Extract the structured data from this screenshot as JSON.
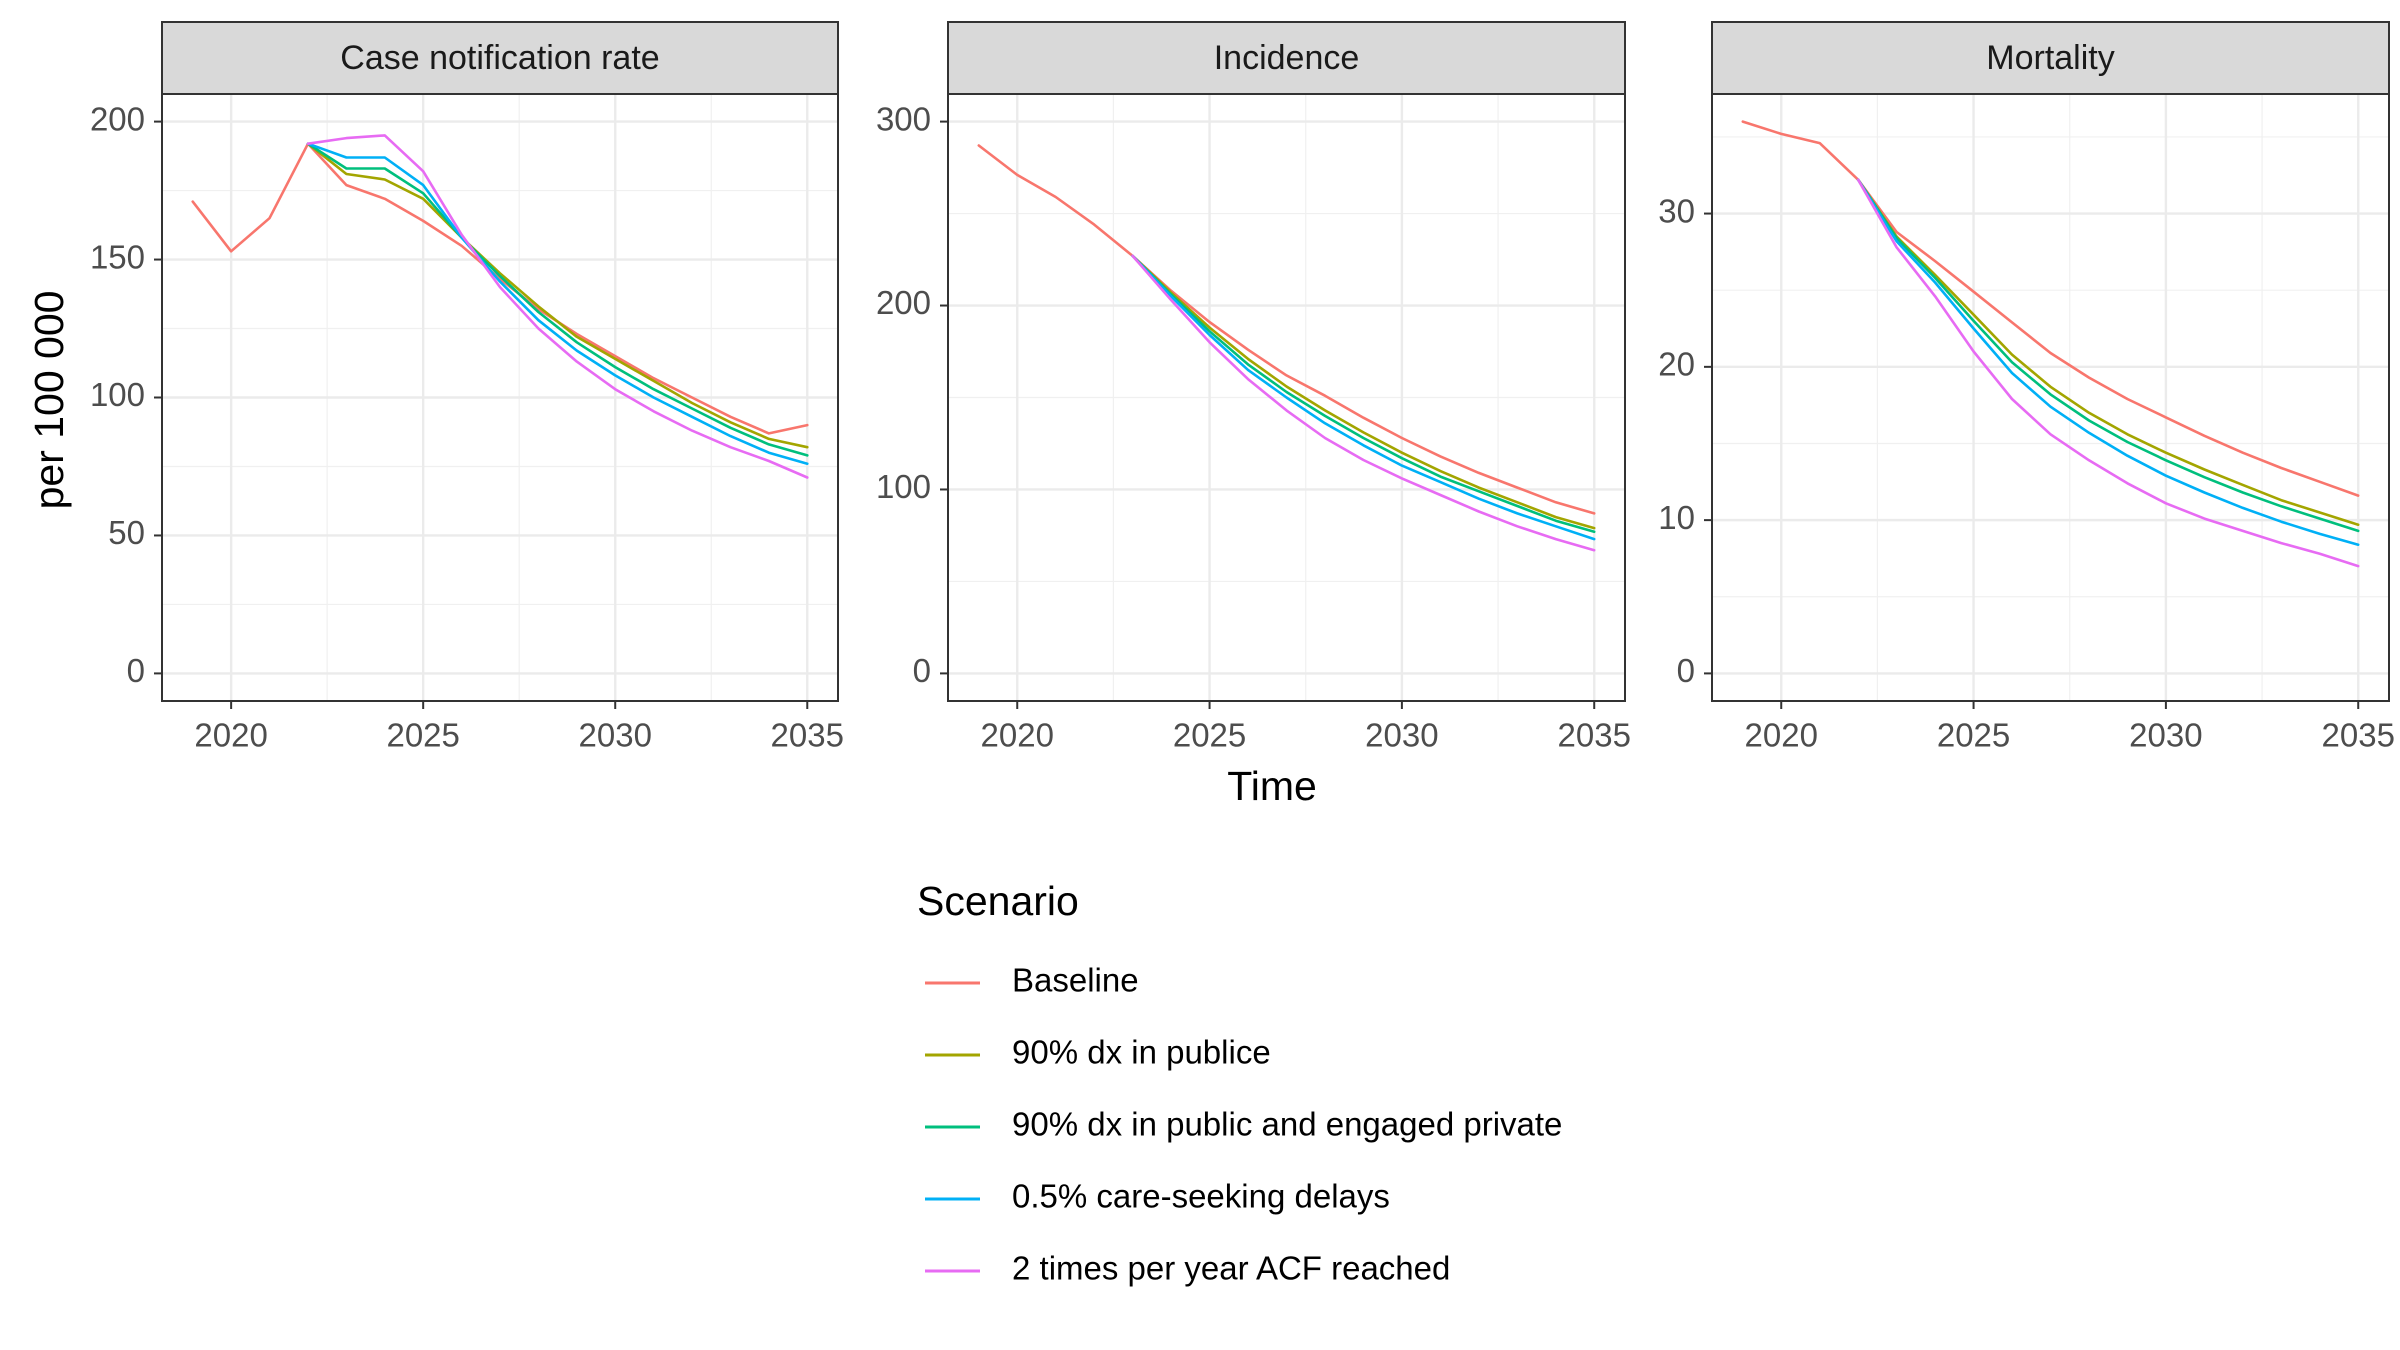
{
  "chart_data": {
    "type": "line",
    "xlabel": "Time",
    "ylabel": "per 100 000",
    "x": [
      2019,
      2020,
      2021,
      2022,
      2023,
      2024,
      2025,
      2026,
      2027,
      2028,
      2029,
      2030,
      2031,
      2032,
      2033,
      2034,
      2035
    ],
    "x_ticks": [
      2020,
      2025,
      2030,
      2035
    ],
    "xlim": [
      2018.2,
      2035.8
    ],
    "grid": true,
    "legend": {
      "title": "Scenario",
      "placement": "bottom",
      "entries": [
        "Baseline",
        "90% dx in publice",
        "90% dx in public and engaged private",
        "0.5% care-seeking delays",
        "2 times per year ACF reached"
      ]
    },
    "series_colors": [
      "#F8766D",
      "#A3A500",
      "#00BF7D",
      "#00B0F6",
      "#E76BF3"
    ],
    "panels": [
      {
        "title": "Case notification rate",
        "ylim": [
          -10,
          210
        ],
        "y_ticks": [
          0,
          50,
          100,
          150,
          200
        ],
        "series": [
          {
            "name": "Baseline",
            "x": [
              2019,
              2020,
              2021,
              2022,
              2023,
              2024,
              2025,
              2026,
              2027,
              2028,
              2029,
              2030,
              2031,
              2032,
              2033,
              2034,
              2035
            ],
            "values": [
              171,
              153,
              165,
              192,
              177,
              172,
              164,
              155,
              143,
              132,
              123,
              115,
              107,
              100,
              93,
              87,
              90
            ]
          },
          {
            "name": "90% dx in publice",
            "x": [
              2022,
              2023,
              2024,
              2025,
              2026,
              2027,
              2028,
              2029,
              2030,
              2031,
              2032,
              2033,
              2034,
              2035
            ],
            "values": [
              192,
              181,
              179,
              172,
              158,
              145,
              133,
              122,
              114,
              106,
              98,
              91,
              85,
              82
            ]
          },
          {
            "name": "90% dx in public and engaged private",
            "x": [
              2022,
              2023,
              2024,
              2025,
              2026,
              2027,
              2028,
              2029,
              2030,
              2031,
              2032,
              2033,
              2034,
              2035
            ],
            "values": [
              192,
              183,
              183,
              174,
              158,
              144,
              131,
              120,
              111,
              103,
              96,
              89,
              83,
              79
            ]
          },
          {
            "name": "0.5% care-seeking delays",
            "x": [
              2022,
              2023,
              2024,
              2025,
              2026,
              2027,
              2028,
              2029,
              2030,
              2031,
              2032,
              2033,
              2034,
              2035
            ],
            "values": [
              192,
              187,
              187,
              177,
              158,
              142,
              128,
              117,
              108,
              100,
              93,
              86,
              80,
              76
            ]
          },
          {
            "name": "2 times per year ACF reached",
            "x": [
              2022,
              2023,
              2024,
              2025,
              2026,
              2027,
              2028,
              2029,
              2030,
              2031,
              2032,
              2033,
              2034,
              2035
            ],
            "values": [
              192,
              194,
              195,
              182,
              159,
              140,
              125,
              113,
              103,
              95,
              88,
              82,
              77,
              71
            ]
          }
        ]
      },
      {
        "title": "Incidence",
        "ylim": [
          -15,
          315
        ],
        "y_ticks": [
          0,
          100,
          200,
          300
        ],
        "series": [
          {
            "name": "Baseline",
            "x": [
              2019,
              2020,
              2021,
              2022,
              2023,
              2024,
              2025,
              2026,
              2027,
              2028,
              2029,
              2030,
              2031,
              2032,
              2033,
              2034,
              2035
            ],
            "values": [
              287,
              271,
              259,
              244,
              227,
              208,
              191,
              176,
              162,
              151,
              139,
              128,
              118,
              109,
              101,
              93,
              87
            ]
          },
          {
            "name": "90% dx in publice",
            "x": [
              2023,
              2024,
              2025,
              2026,
              2027,
              2028,
              2029,
              2030,
              2031,
              2032,
              2033,
              2034,
              2035
            ],
            "values": [
              227,
              207,
              188,
              171,
              156,
              143,
              131,
              120,
              110,
              101,
              93,
              85,
              79
            ]
          },
          {
            "name": "90% dx in public and engaged private",
            "x": [
              2023,
              2024,
              2025,
              2026,
              2027,
              2028,
              2029,
              2030,
              2031,
              2032,
              2033,
              2034,
              2035
            ],
            "values": [
              227,
              206,
              186,
              168,
              153,
              140,
              128,
              117,
              107,
              99,
              91,
              83,
              77
            ]
          },
          {
            "name": "0.5% care-seeking delays",
            "x": [
              2023,
              2024,
              2025,
              2026,
              2027,
              2028,
              2029,
              2030,
              2031,
              2032,
              2033,
              2034,
              2035
            ],
            "values": [
              227,
              205,
              184,
              165,
              150,
              136,
              124,
              113,
              104,
              95,
              87,
              80,
              73
            ]
          },
          {
            "name": "2 times per year ACF reached",
            "x": [
              2023,
              2024,
              2025,
              2026,
              2027,
              2028,
              2029,
              2030,
              2031,
              2032,
              2033,
              2034,
              2035
            ],
            "values": [
              227,
              203,
              180,
              160,
              143,
              128,
              116,
              106,
              97,
              88,
              80,
              73,
              67
            ]
          }
        ]
      },
      {
        "title": "Mortality",
        "ylim": [
          -1.8,
          37.8
        ],
        "y_ticks": [
          0,
          10,
          20,
          30
        ],
        "series": [
          {
            "name": "Baseline",
            "x": [
              2019,
              2020,
              2021,
              2022,
              2023,
              2024,
              2025,
              2026,
              2027,
              2028,
              2029,
              2030,
              2031,
              2032,
              2033,
              2034,
              2035
            ],
            "values": [
              36,
              35.2,
              34.6,
              32.2,
              28.8,
              26.9,
              24.9,
              22.9,
              20.9,
              19.3,
              17.9,
              16.7,
              15.5,
              14.4,
              13.4,
              12.5,
              11.6
            ]
          },
          {
            "name": "90% dx in publice",
            "x": [
              2022,
              2023,
              2024,
              2025,
              2026,
              2027,
              2028,
              2029,
              2030,
              2031,
              2032,
              2033,
              2034,
              2035
            ],
            "values": [
              32.2,
              28.5,
              26.0,
              23.4,
              20.8,
              18.7,
              17.0,
              15.6,
              14.4,
              13.3,
              12.3,
              11.3,
              10.5,
              9.7
            ]
          },
          {
            "name": "90% dx in public and engaged private",
            "x": [
              2022,
              2023,
              2024,
              2025,
              2026,
              2027,
              2028,
              2029,
              2030,
              2031,
              2032,
              2033,
              2034,
              2035
            ],
            "values": [
              32.2,
              28.4,
              25.8,
              23.0,
              20.3,
              18.2,
              16.5,
              15.1,
              13.9,
              12.8,
              11.8,
              10.9,
              10.1,
              9.3
            ]
          },
          {
            "name": "0.5% care-seeking delays",
            "x": [
              2022,
              2023,
              2024,
              2025,
              2026,
              2027,
              2028,
              2029,
              2030,
              2031,
              2032,
              2033,
              2034,
              2035
            ],
            "values": [
              32.2,
              28.2,
              25.5,
              22.5,
              19.6,
              17.4,
              15.7,
              14.2,
              12.9,
              11.8,
              10.8,
              9.9,
              9.1,
              8.4
            ]
          },
          {
            "name": "2 times per year ACF reached",
            "x": [
              2022,
              2023,
              2024,
              2025,
              2026,
              2027,
              2028,
              2029,
              2030,
              2031,
              2032,
              2033,
              2034,
              2035
            ],
            "values": [
              32.2,
              27.8,
              24.6,
              21.0,
              17.9,
              15.6,
              13.9,
              12.4,
              11.1,
              10.1,
              9.3,
              8.5,
              7.8,
              7.0
            ]
          }
        ]
      }
    ]
  }
}
